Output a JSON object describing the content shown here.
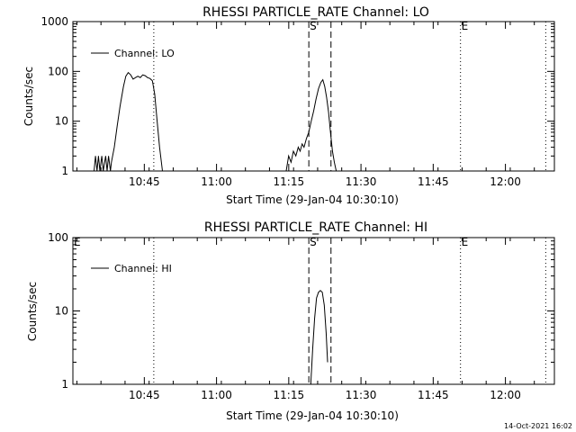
{
  "stamp": "14-Oct-2021 16:02",
  "chart_data": [
    {
      "type": "line",
      "title": "RHESSI PARTICLE_RATE Channel: LO",
      "xlabel": "Start Time (29-Jan-04 10:30:10)",
      "ylabel": "Counts/sec",
      "yscale": "log",
      "ylim": [
        1,
        1000
      ],
      "xlim_minutes_after_start": [
        0,
        100
      ],
      "yticks": [
        {
          "value": 1,
          "label": "1"
        },
        {
          "value": 10,
          "label": "10"
        },
        {
          "value": 100,
          "label": "100"
        },
        {
          "value": 1000,
          "label": "1000"
        }
      ],
      "xticks": [
        {
          "value": 14.83,
          "label": "10:45"
        },
        {
          "value": 29.83,
          "label": "11:00"
        },
        {
          "value": 44.83,
          "label": "11:15"
        },
        {
          "value": 59.83,
          "label": "11:30"
        },
        {
          "value": 74.83,
          "label": "11:45"
        },
        {
          "value": 89.83,
          "label": "12:00"
        }
      ],
      "legend": {
        "label": "Channel: LO",
        "placement": "top-left"
      },
      "markers": [
        {
          "label": "S",
          "x": 49.0,
          "style": "dashed"
        },
        {
          "label": "",
          "x": 53.6,
          "style": "dashed"
        },
        {
          "label": "E",
          "x": 80.5,
          "style": "dotted"
        },
        {
          "label": "",
          "x": 16.8,
          "style": "dotted"
        },
        {
          "label": "",
          "x": 98.2,
          "style": "dotted"
        }
      ],
      "series": [
        {
          "name": "Channel: LO",
          "points": [
            [
              4.4,
              1
            ],
            [
              4.7,
              2
            ],
            [
              5.0,
              1
            ],
            [
              5.3,
              2
            ],
            [
              5.6,
              1
            ],
            [
              6.0,
              2
            ],
            [
              6.3,
              1
            ],
            [
              6.8,
              2
            ],
            [
              7.1,
              1
            ],
            [
              7.4,
              2
            ],
            [
              7.8,
              1
            ],
            [
              8.0,
              1.5
            ],
            [
              8.6,
              3
            ],
            [
              9.2,
              8
            ],
            [
              9.8,
              20
            ],
            [
              10.5,
              50
            ],
            [
              11.0,
              80
            ],
            [
              11.5,
              95
            ],
            [
              12.0,
              85
            ],
            [
              12.5,
              70
            ],
            [
              13.0,
              75
            ],
            [
              13.5,
              80
            ],
            [
              14.0,
              75
            ],
            [
              14.5,
              85
            ],
            [
              15.0,
              82
            ],
            [
              15.5,
              75
            ],
            [
              16.0,
              72
            ],
            [
              16.5,
              65
            ],
            [
              17.0,
              35
            ],
            [
              17.5,
              10
            ],
            [
              18.0,
              3
            ],
            [
              18.6,
              1
            ],
            [
              44.3,
              1
            ],
            [
              44.8,
              2
            ],
            [
              45.3,
              1.5
            ],
            [
              45.8,
              2.5
            ],
            [
              46.3,
              2
            ],
            [
              46.8,
              3
            ],
            [
              47.2,
              2.5
            ],
            [
              47.6,
              3.5
            ],
            [
              48.0,
              3
            ],
            [
              48.5,
              4.5
            ],
            [
              49.0,
              6
            ],
            [
              49.5,
              10
            ],
            [
              50.0,
              16
            ],
            [
              50.5,
              28
            ],
            [
              51.0,
              45
            ],
            [
              51.5,
              60
            ],
            [
              51.9,
              68
            ],
            [
              52.3,
              50
            ],
            [
              52.7,
              30
            ],
            [
              53.1,
              15
            ],
            [
              53.5,
              6
            ],
            [
              53.9,
              2.5
            ],
            [
              54.3,
              1.5
            ],
            [
              54.7,
              1
            ]
          ]
        }
      ]
    },
    {
      "type": "line",
      "title": "RHESSI PARTICLE_RATE Channel: HI",
      "xlabel": "Start Time (29-Jan-04 10:30:10)",
      "ylabel": "Counts/sec",
      "yscale": "log",
      "ylim": [
        1,
        100
      ],
      "xlim_minutes_after_start": [
        0,
        100
      ],
      "yticks": [
        {
          "value": 1,
          "label": "1"
        },
        {
          "value": 10,
          "label": "10"
        },
        {
          "value": 100,
          "label": "100"
        }
      ],
      "xticks": [
        {
          "value": 14.83,
          "label": "10:45"
        },
        {
          "value": 29.83,
          "label": "11:00"
        },
        {
          "value": 44.83,
          "label": "11:15"
        },
        {
          "value": 59.83,
          "label": "11:30"
        },
        {
          "value": 74.83,
          "label": "11:45"
        },
        {
          "value": 89.83,
          "label": "12:00"
        }
      ],
      "legend": {
        "label": "Channel: HI",
        "placement": "top-left"
      },
      "markers": [
        {
          "label": "E",
          "x": 0.0,
          "style": "none"
        },
        {
          "label": "S",
          "x": 49.0,
          "style": "dashed"
        },
        {
          "label": "",
          "x": 53.6,
          "style": "dashed"
        },
        {
          "label": "E",
          "x": 80.5,
          "style": "dotted"
        },
        {
          "label": "",
          "x": 16.8,
          "style": "dotted"
        },
        {
          "label": "",
          "x": 98.2,
          "style": "dotted"
        }
      ],
      "series": [
        {
          "name": "Channel: HI",
          "points": [
            [
              49.4,
              1
            ],
            [
              49.8,
              3
            ],
            [
              50.2,
              8
            ],
            [
              50.6,
              15
            ],
            [
              51.0,
              18
            ],
            [
              51.4,
              19
            ],
            [
              51.8,
              18
            ],
            [
              52.2,
              12
            ],
            [
              52.6,
              5
            ],
            [
              52.9,
              2
            ]
          ]
        }
      ]
    }
  ]
}
